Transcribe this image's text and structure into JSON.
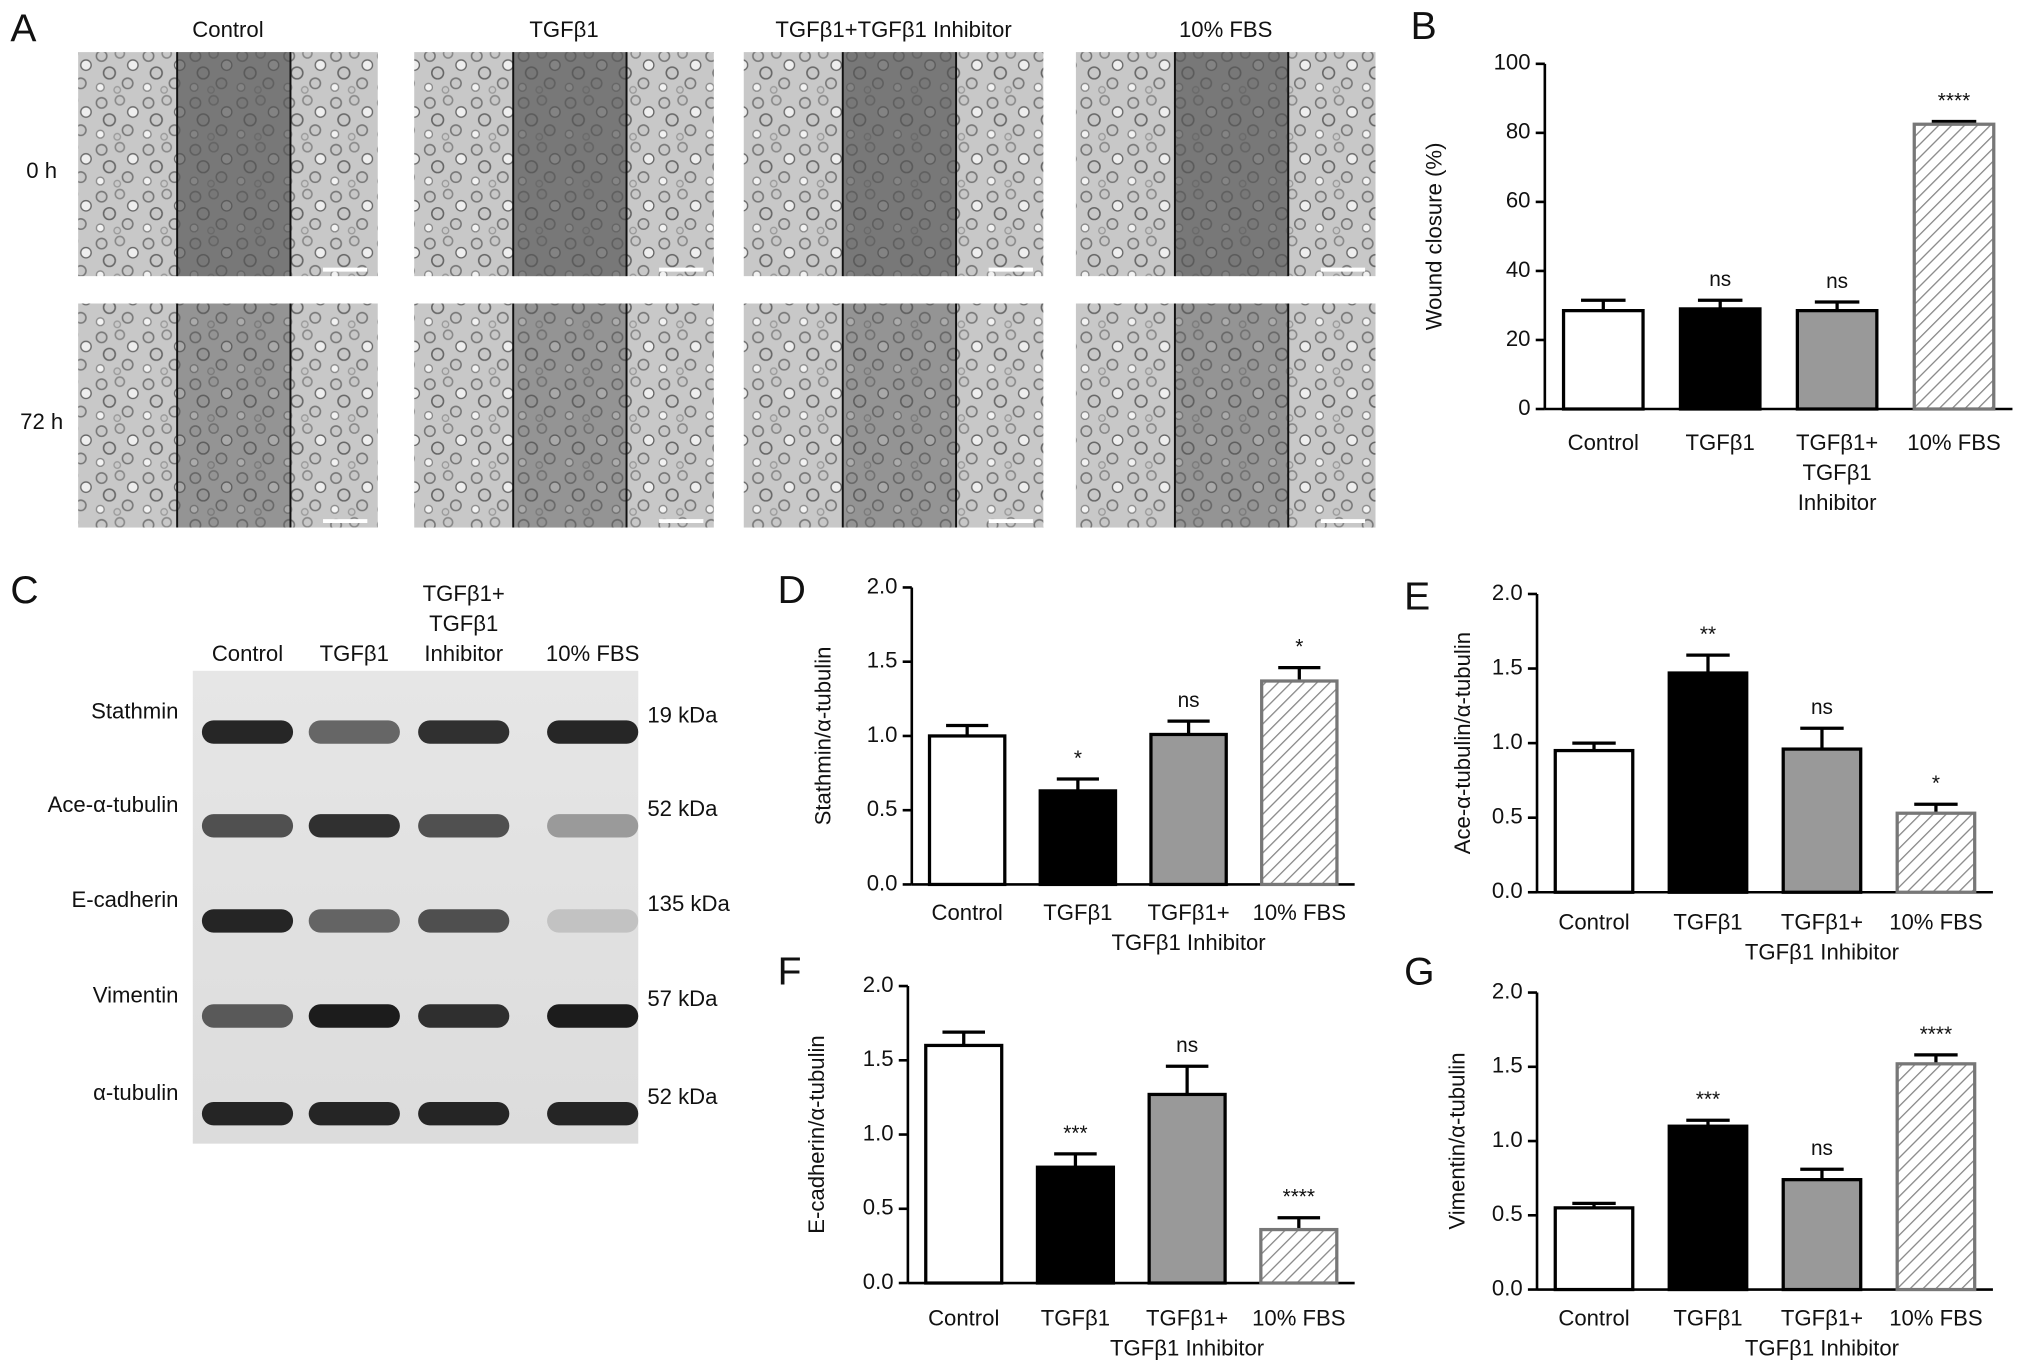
{
  "panel_a": {
    "label": "A",
    "columns": [
      "Control",
      "TGFβ1",
      "TGFβ1+TGFβ1 Inhibitor",
      "10% FBS"
    ],
    "rows": [
      "0 h",
      "72 h"
    ]
  },
  "panel_c": {
    "label": "C",
    "columns": [
      "Control",
      "TGFβ1",
      [
        "TGFβ1+",
        "TGFβ1",
        "Inhibitor"
      ],
      "10% FBS"
    ],
    "proteins": [
      "Stathmin",
      "Ace-α-tubulin",
      "E-cadherin",
      "Vimentin",
      "α-tubulin"
    ],
    "sizes": [
      "19 kDa",
      "52 kDa",
      "135 kDa",
      "57 kDa",
      "52 kDa"
    ]
  },
  "chart_data": [
    {
      "type": "bar",
      "label": "B",
      "ylabel": "Wound closure (%)",
      "categories": [
        "Control",
        "TGFβ1",
        [
          "TGFβ1+",
          "TGFβ1",
          "Inhibitor"
        ],
        "10% FBS"
      ],
      "values": [
        28.5,
        29,
        28.5,
        82.5
      ],
      "errors": [
        3,
        2.5,
        2.5,
        0.8
      ],
      "annotations": [
        null,
        "ns",
        "ns",
        "****"
      ],
      "colors": [
        "#ffffff",
        "#000000",
        "#999999",
        "#ffffff"
      ],
      "patterns": [
        "solid",
        "solid",
        "solid",
        "hatch"
      ],
      "ylim": [
        0,
        100
      ],
      "yticks": [
        0,
        20,
        40,
        60,
        80,
        100
      ]
    },
    {
      "type": "bar",
      "label": "D",
      "ylabel": "Stathmin/α-tubulin",
      "categories": [
        "Control",
        "TGFβ1",
        [
          "TGFβ1+",
          "TGFβ1 Inhibitor"
        ],
        "10% FBS"
      ],
      "values": [
        1.0,
        0.63,
        1.01,
        1.37
      ],
      "errors": [
        0.07,
        0.08,
        0.09,
        0.09
      ],
      "annotations": [
        null,
        "*",
        "ns",
        "*"
      ],
      "colors": [
        "#ffffff",
        "#000000",
        "#999999",
        "#ffffff"
      ],
      "patterns": [
        "solid",
        "solid",
        "solid",
        "hatch"
      ],
      "ylim": [
        0,
        2
      ],
      "yticks": [
        {
          "value": 0,
          "label": "0.0"
        },
        {
          "value": 0.5,
          "label": "0.5"
        },
        {
          "value": 1,
          "label": "1.0"
        },
        {
          "value": 1.5,
          "label": "1.5"
        },
        {
          "value": 2,
          "label": "2.0"
        }
      ]
    },
    {
      "type": "bar",
      "label": "E",
      "ylabel": "Ace-α-tubulin/α-tubulin",
      "categories": [
        "Control",
        "TGFβ1",
        [
          "TGFβ1+",
          "TGFβ1 Inhibitor"
        ],
        "10% FBS"
      ],
      "values": [
        0.95,
        1.47,
        0.96,
        0.53
      ],
      "errors": [
        0.05,
        0.12,
        0.14,
        0.06
      ],
      "annotations": [
        null,
        "**",
        "ns",
        "*"
      ],
      "colors": [
        "#ffffff",
        "#000000",
        "#999999",
        "#ffffff"
      ],
      "patterns": [
        "solid",
        "solid",
        "solid",
        "hatch"
      ],
      "ylim": [
        0,
        2
      ],
      "yticks": [
        {
          "value": 0,
          "label": "0.0"
        },
        {
          "value": 0.5,
          "label": "0.5"
        },
        {
          "value": 1,
          "label": "1.0"
        },
        {
          "value": 1.5,
          "label": "1.5"
        },
        {
          "value": 2,
          "label": "2.0"
        }
      ]
    },
    {
      "type": "bar",
      "label": "F",
      "ylabel": "E-cadherin/α-tubulin",
      "categories": [
        "Control",
        "TGFβ1",
        [
          "TGFβ1+",
          "TGFβ1 Inhibitor"
        ],
        "10% FBS"
      ],
      "values": [
        1.6,
        0.78,
        1.27,
        0.36
      ],
      "errors": [
        0.09,
        0.09,
        0.19,
        0.08
      ],
      "annotations": [
        null,
        "***",
        "ns",
        "****"
      ],
      "colors": [
        "#ffffff",
        "#000000",
        "#999999",
        "#ffffff"
      ],
      "patterns": [
        "solid",
        "solid",
        "solid",
        "hatch"
      ],
      "ylim": [
        0,
        2
      ],
      "yticks": [
        {
          "value": 0,
          "label": "0.0"
        },
        {
          "value": 0.5,
          "label": "0.5"
        },
        {
          "value": 1,
          "label": "1.0"
        },
        {
          "value": 1.5,
          "label": "1.5"
        },
        {
          "value": 2,
          "label": "2.0"
        }
      ]
    },
    {
      "type": "bar",
      "label": "G",
      "ylabel": "Vimentin/α-tubulin",
      "categories": [
        "Control",
        "TGFβ1",
        [
          "TGFβ1+",
          "TGFβ1 Inhibitor"
        ],
        "10% FBS"
      ],
      "values": [
        0.55,
        1.1,
        0.74,
        1.52
      ],
      "errors": [
        0.03,
        0.04,
        0.07,
        0.06
      ],
      "annotations": [
        null,
        "***",
        "ns",
        "****"
      ],
      "colors": [
        "#ffffff",
        "#000000",
        "#999999",
        "#ffffff"
      ],
      "patterns": [
        "solid",
        "solid",
        "solid",
        "hatch"
      ],
      "ylim": [
        0,
        2
      ],
      "yticks": [
        {
          "value": 0,
          "label": "0.0"
        },
        {
          "value": 0.5,
          "label": "0.5"
        },
        {
          "value": 1,
          "label": "1.0"
        },
        {
          "value": 1.5,
          "label": "1.5"
        },
        {
          "value": 2,
          "label": "2.0"
        }
      ]
    }
  ]
}
